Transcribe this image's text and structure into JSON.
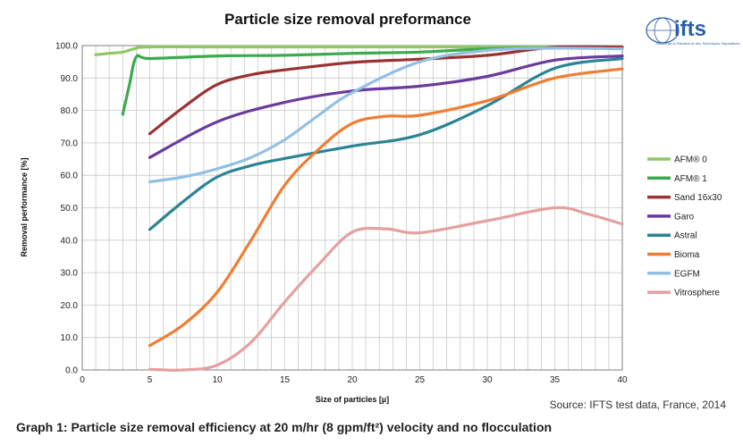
{
  "chart_data": {
    "type": "line",
    "title": "Particle size removal preformance",
    "xlabel": "Size of particles [µ]",
    "ylabel": "Removal performance [%]",
    "xlim": [
      0,
      40
    ],
    "ylim": [
      0,
      100
    ],
    "x_ticks": [
      "0",
      "5",
      "10",
      "15",
      "20",
      "25",
      "30",
      "35",
      "40"
    ],
    "y_ticks": [
      "0.0",
      "10.0",
      "20.0",
      "30.0",
      "40.0",
      "50.0",
      "60.0",
      "70.0",
      "80.0",
      "90.0",
      "100.0"
    ],
    "grid": true,
    "legend_position": "right",
    "series": [
      {
        "name": "AFM® 0",
        "color": "#8dc863",
        "points": [
          [
            1,
            97.2
          ],
          [
            2,
            97.6
          ],
          [
            3,
            98.0
          ],
          [
            4,
            99.2
          ],
          [
            5,
            99.6
          ],
          [
            10,
            99.6
          ],
          [
            20,
            99.6
          ],
          [
            30,
            99.6
          ],
          [
            40,
            99.6
          ]
        ]
      },
      {
        "name": "AFM® 1",
        "color": "#3aab4d",
        "points": [
          [
            3,
            78.8
          ],
          [
            3.5,
            88.0
          ],
          [
            4,
            96.5
          ],
          [
            5,
            96.0
          ],
          [
            10,
            96.8
          ],
          [
            15,
            97.0
          ],
          [
            20,
            97.6
          ],
          [
            25,
            98.0
          ],
          [
            30,
            99.0
          ],
          [
            35,
            99.3
          ],
          [
            40,
            99.2
          ]
        ]
      },
      {
        "name": "Sand 16x30",
        "color": "#9b3232",
        "points": [
          [
            5,
            72.8
          ],
          [
            7.5,
            81.0
          ],
          [
            10,
            88.0
          ],
          [
            12.5,
            91.0
          ],
          [
            15,
            92.5
          ],
          [
            20,
            94.8
          ],
          [
            25,
            95.8
          ],
          [
            30,
            97.0
          ],
          [
            35,
            99.5
          ],
          [
            40,
            99.5
          ]
        ]
      },
      {
        "name": "Garo",
        "color": "#6a3a9e",
        "points": [
          [
            5,
            65.5
          ],
          [
            10,
            76.5
          ],
          [
            15,
            82.5
          ],
          [
            20,
            86.0
          ],
          [
            25,
            87.5
          ],
          [
            30,
            90.5
          ],
          [
            35,
            95.5
          ],
          [
            40,
            96.8
          ]
        ]
      },
      {
        "name": "Astral",
        "color": "#2b8493",
        "points": [
          [
            5,
            43.3
          ],
          [
            7.5,
            52.0
          ],
          [
            10,
            59.5
          ],
          [
            12.5,
            63.0
          ],
          [
            15,
            65.2
          ],
          [
            20,
            69.0
          ],
          [
            25,
            72.5
          ],
          [
            30,
            81.5
          ],
          [
            35,
            93.0
          ],
          [
            40,
            96.0
          ]
        ]
      },
      {
        "name": "Bioma",
        "color": "#f07d32",
        "points": [
          [
            5,
            7.5
          ],
          [
            7.5,
            14.0
          ],
          [
            10,
            24.0
          ],
          [
            12.5,
            40.0
          ],
          [
            15,
            57.0
          ],
          [
            17.5,
            68.0
          ],
          [
            20,
            76.0
          ],
          [
            22.5,
            78.2
          ],
          [
            25,
            78.5
          ],
          [
            30,
            83.0
          ],
          [
            35,
            90.0
          ],
          [
            40,
            92.8
          ]
        ]
      },
      {
        "name": "EGFM",
        "color": "#93bfe3",
        "points": [
          [
            5,
            58.0
          ],
          [
            7.5,
            59.5
          ],
          [
            10,
            62.0
          ],
          [
            12.5,
            65.5
          ],
          [
            15,
            71.0
          ],
          [
            17.5,
            78.5
          ],
          [
            20,
            85.5
          ],
          [
            25,
            95.0
          ],
          [
            30,
            98.5
          ],
          [
            35,
            99.2
          ],
          [
            40,
            99.0
          ]
        ]
      },
      {
        "name": "Vitrosphere",
        "color": "#e5a0a0",
        "points": [
          [
            5,
            0.2
          ],
          [
            7.5,
            0.0
          ],
          [
            10,
            1.5
          ],
          [
            12.5,
            8.5
          ],
          [
            15,
            21.0
          ],
          [
            17.5,
            32.5
          ],
          [
            20,
            42.5
          ],
          [
            22.5,
            43.5
          ],
          [
            25,
            42.3
          ],
          [
            30,
            46.0
          ],
          [
            35,
            50.0
          ],
          [
            37.5,
            48.0
          ],
          [
            40,
            45.0
          ]
        ]
      }
    ]
  },
  "source_note": "Source: IFTS test data, France, 2014",
  "caption": "Graph 1: Particle size removal efficiency at 20 m/hr (8 gpm/ft²) velocity and no flocculation",
  "logo": {
    "text": "ifts",
    "subtitle": "Institut de la Filtration et des Techniques Séparatives"
  }
}
